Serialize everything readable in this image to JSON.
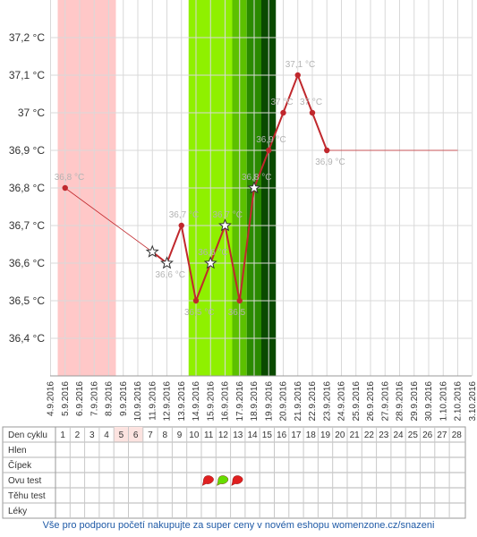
{
  "chart_data": {
    "type": "line",
    "y_unit_suffix": " °C",
    "ylim": [
      36.3,
      37.3
    ],
    "y_ticks": [
      {
        "v": 37.2,
        "label": "37,2 °C"
      },
      {
        "v": 37.1,
        "label": "37,1 °C"
      },
      {
        "v": 37.0,
        "label": "37 °C"
      },
      {
        "v": 36.9,
        "label": "36,9 °C"
      },
      {
        "v": 36.8,
        "label": "36,8 °C"
      },
      {
        "v": 36.7,
        "label": "36,7 °C"
      },
      {
        "v": 36.6,
        "label": "36,6 °C"
      },
      {
        "v": 36.5,
        "label": "36,5 °C"
      },
      {
        "v": 36.4,
        "label": "36,4 °C"
      }
    ],
    "dates": [
      "4.9.2016",
      "5.9.2016",
      "6.9.2016",
      "7.9.2016",
      "8.9.2016",
      "9.9.2016",
      "10.9.2016",
      "11.9.2016",
      "12.9.2016",
      "13.9.2016",
      "14.9.2016",
      "15.9.2016",
      "16.9.2016",
      "17.9.2016",
      "18.9.2016",
      "19.9.2016",
      "20.9.2016",
      "21.9.2016",
      "22.9.2016",
      "23.9.2016",
      "24.9.2016",
      "25.9.2016",
      "26.9.2016",
      "27.9.2016",
      "28.9.2016",
      "29.9.2016",
      "30.9.2016",
      "1.10.2016",
      "2.10.2016",
      "3.10.2016"
    ],
    "grid": true,
    "bands": [
      {
        "from": "4.9.2016",
        "to": "8.9.2016",
        "color": "#ffc8c8",
        "meaning": "menstruation"
      },
      {
        "from": "13.9.2016",
        "to": "16.9.2016",
        "color": "#8ff000",
        "meaning": "fertile"
      },
      {
        "from": "16.9.2016",
        "to": "17.9.2016",
        "color": "#5cc000",
        "meaning": "fertile"
      },
      {
        "from": "17.9.2016",
        "to": "18.9.2016",
        "color": "#2a8a00",
        "meaning": "fertile"
      },
      {
        "from": "18.9.2016",
        "to": "19.9.2016",
        "color": "#0a4a00",
        "meaning": "ovulation"
      }
    ],
    "sparse_line": [
      {
        "x": "5.9.2016",
        "y": 36.8
      },
      {
        "x": "11.9.2016",
        "y": 36.63
      }
    ],
    "main_series": [
      {
        "x": "11.9.2016",
        "y": 36.63,
        "marker": "star",
        "label": ""
      },
      {
        "x": "12.9.2016",
        "y": 36.6,
        "marker": "star",
        "label": "36,6 °C"
      },
      {
        "x": "13.9.2016",
        "y": 36.7,
        "marker": "dot",
        "label": "36,7 °C"
      },
      {
        "x": "14.9.2016",
        "y": 36.5,
        "marker": "dot",
        "label": "36,5 °C"
      },
      {
        "x": "15.9.2016",
        "y": 36.6,
        "marker": "star",
        "label": "36,6 °C"
      },
      {
        "x": "16.9.2016",
        "y": 36.7,
        "marker": "star",
        "label": "36,7 °C"
      },
      {
        "x": "17.9.2016",
        "y": 36.5,
        "marker": "dot",
        "label": "36,5"
      },
      {
        "x": "18.9.2016",
        "y": 36.8,
        "marker": "star",
        "label": "36,8 °C"
      },
      {
        "x": "19.9.2016",
        "y": 36.9,
        "marker": "dot",
        "label": "36,9 °C"
      },
      {
        "x": "20.9.2016",
        "y": 37.0,
        "marker": "dot",
        "label": "37 °C"
      },
      {
        "x": "21.9.2016",
        "y": 37.1,
        "marker": "dot",
        "label": "37,1 °C"
      },
      {
        "x": "22.9.2016",
        "y": 37.0,
        "marker": "dot",
        "label": "37 °C"
      },
      {
        "x": "23.9.2016",
        "y": 36.9,
        "marker": "dot",
        "label": "36,9 °C"
      }
    ],
    "first_point_label": "36,8 °C",
    "flat_line": {
      "from": "23.9.2016",
      "to": "2.10.2016",
      "y": 36.9
    },
    "colors": {
      "line": "#c0282d",
      "grid": "#d9d9d9",
      "label": "#b3b3b3",
      "text": "#333333",
      "accent_blue": "#1f5aa6"
    }
  },
  "table": {
    "header_label": "Den cyklu",
    "days": [
      "1",
      "2",
      "3",
      "4",
      "5",
      "6",
      "7",
      "8",
      "9",
      "10",
      "11",
      "12",
      "13",
      "14",
      "15",
      "16",
      "17",
      "18",
      "19",
      "20",
      "21",
      "22",
      "23",
      "24",
      "25",
      "26",
      "27",
      "28"
    ],
    "highlight_days": [
      "5",
      "6"
    ],
    "rows": [
      "Hlen",
      "Čípek",
      "Ovu test",
      "Těhu test",
      "Léky"
    ],
    "ovu_tests": [
      {
        "day": "11",
        "result": "negative",
        "color": "#e02020"
      },
      {
        "day": "12",
        "result": "positive",
        "color": "#66dd00"
      },
      {
        "day": "13",
        "result": "negative",
        "color": "#e02020"
      }
    ]
  },
  "footer": {
    "text": "Vše pro podporu početí nakupujte za super ceny v novém eshopu womenzone.cz/snazeni"
  }
}
